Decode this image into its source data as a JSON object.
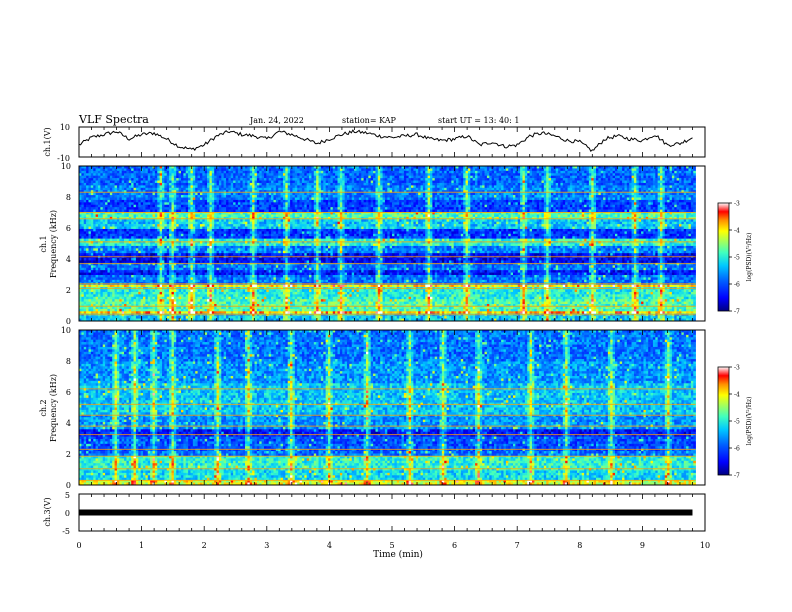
{
  "header": {
    "title": "VLF Spectra",
    "date": "Jan. 24, 2022",
    "station": "station= KAP",
    "start": "start  UT =   13: 40: 1"
  },
  "colors": {
    "frame": "#000000",
    "background": "#ffffff",
    "colormap": [
      "#00007f",
      "#0000ff",
      "#0060ff",
      "#00c8ff",
      "#40ffbf",
      "#a0ff60",
      "#ffff00",
      "#ff9000",
      "#ff0000",
      "#ffffff"
    ]
  },
  "chart_data": [
    {
      "type": "line",
      "panel": "ch1-waveform",
      "ylabel": "ch.1(V)",
      "ylim": [
        -10,
        10
      ],
      "yticks": [
        "10",
        "-10"
      ],
      "xlim": [
        0,
        10
      ],
      "series": [
        {
          "x": [
            0,
            0.2,
            0.4,
            0.6,
            0.8,
            1.0,
            1.2,
            1.4,
            1.6,
            1.8,
            2.0,
            2.2,
            2.4,
            2.6,
            2.8,
            3.0,
            3.2,
            3.4,
            3.6,
            3.8,
            4.0,
            4.2,
            4.4,
            4.6,
            4.8,
            5.0,
            5.2,
            5.4,
            5.6,
            5.8,
            6.0,
            6.2,
            6.4,
            6.6,
            6.8,
            7.0,
            7.2,
            7.4,
            7.6,
            7.8,
            8.0,
            8.2,
            8.4,
            8.6,
            8.8,
            9.0,
            9.2,
            9.4,
            9.6,
            9.8
          ],
          "y": [
            -2,
            3,
            5,
            7,
            2,
            5,
            6,
            2,
            -3,
            -5,
            -2,
            4,
            7,
            5,
            4,
            2,
            7,
            5,
            2,
            -1,
            2,
            5,
            7,
            6,
            4,
            3,
            4,
            5,
            2,
            1,
            2,
            4,
            -2,
            0,
            -3,
            -2,
            4,
            6,
            4,
            1,
            0,
            -6,
            2,
            4,
            2,
            1,
            5,
            -2,
            -1,
            3
          ]
        }
      ]
    },
    {
      "type": "heatmap",
      "panel": "ch1-spectrogram",
      "ylabel": "ch.1\nFrequency (kHz)",
      "ylim": [
        0,
        10
      ],
      "yticks": [
        "0",
        "2",
        "4",
        "6",
        "8",
        "10"
      ],
      "xlim": [
        0,
        10
      ],
      "colorbar": {
        "label": "log(PSD)(V²/Hz)",
        "range": [
          -7,
          -3
        ],
        "ticks": [
          "-3",
          "-4",
          "-5",
          "-6",
          "-7"
        ]
      },
      "bands": [
        {
          "low": 0,
          "high": 0.4,
          "level": 0.42
        },
        {
          "low": 0.4,
          "high": 0.7,
          "level": 0.8
        },
        {
          "low": 0.7,
          "high": 1.4,
          "level": 0.55
        },
        {
          "low": 1.4,
          "high": 2.2,
          "level": 0.5
        },
        {
          "low": 2.2,
          "high": 2.4,
          "level": 0.75
        },
        {
          "low": 2.4,
          "high": 3.0,
          "level": 0.3
        },
        {
          "low": 3.0,
          "high": 3.3,
          "level": 0.15
        },
        {
          "low": 3.3,
          "high": 3.7,
          "level": 0.3
        },
        {
          "low": 3.7,
          "high": 4.3,
          "level": 0.12
        },
        {
          "low": 4.3,
          "high": 4.8,
          "level": 0.32
        },
        {
          "low": 4.8,
          "high": 5.3,
          "level": 0.5
        },
        {
          "low": 5.3,
          "high": 6.0,
          "level": 0.2
        },
        {
          "low": 6.0,
          "high": 6.6,
          "level": 0.42
        },
        {
          "low": 6.6,
          "high": 7.0,
          "level": 0.55
        },
        {
          "low": 7.0,
          "high": 7.8,
          "level": 0.22
        },
        {
          "low": 7.8,
          "high": 8.8,
          "level": 0.32
        },
        {
          "low": 8.8,
          "high": 10.0,
          "level": 0.28
        }
      ],
      "lines": [
        0.4,
        0.95,
        2.1,
        2.4,
        3.7,
        4.15,
        5.1,
        6.6,
        7.0,
        8.3
      ],
      "bursts": [
        1.3,
        1.5,
        1.8,
        2.1,
        2.8,
        3.3,
        3.8,
        4.2,
        4.8,
        5.6,
        6.2,
        7.1,
        7.5,
        8.2,
        8.9,
        9.3
      ]
    },
    {
      "type": "heatmap",
      "panel": "ch2-spectrogram",
      "ylabel": "ch.2\nFrequency (kHz)",
      "ylim": [
        0,
        10
      ],
      "yticks": [
        "0",
        "2",
        "4",
        "6",
        "8",
        "10"
      ],
      "xlim": [
        0,
        10
      ],
      "colorbar": {
        "label": "log(PSD)(V²/Hz)",
        "range": [
          -7,
          -3
        ],
        "ticks": [
          "-3",
          "-4",
          "-5",
          "-6",
          "-7"
        ]
      },
      "bands": [
        {
          "low": 0,
          "high": 0.3,
          "level": 0.7
        },
        {
          "low": 0.3,
          "high": 1.0,
          "level": 0.45
        },
        {
          "low": 1.0,
          "high": 1.8,
          "level": 0.5
        },
        {
          "low": 1.8,
          "high": 2.2,
          "level": 0.3
        },
        {
          "low": 2.2,
          "high": 3.2,
          "level": 0.25
        },
        {
          "low": 3.2,
          "high": 3.6,
          "level": 0.15
        },
        {
          "low": 3.6,
          "high": 4.5,
          "level": 0.35
        },
        {
          "low": 4.5,
          "high": 6.5,
          "level": 0.42
        },
        {
          "low": 6.5,
          "high": 8.0,
          "level": 0.35
        },
        {
          "low": 8.0,
          "high": 10.0,
          "level": 0.3
        }
      ],
      "lines": [
        0.3,
        1.05,
        1.85,
        2.3,
        3.25,
        3.8,
        4.5,
        5.2,
        6.2
      ],
      "bursts": [
        0.6,
        0.9,
        1.2,
        1.5,
        2.2,
        2.7,
        3.4,
        4.0,
        4.6,
        5.3,
        5.8,
        6.4,
        7.2,
        7.8,
        8.5,
        9.4
      ]
    },
    {
      "type": "line",
      "panel": "ch3-waveform",
      "ylabel": "ch.3(V)",
      "ylim": [
        -5,
        5
      ],
      "yticks": [
        "5",
        "0",
        "-5"
      ],
      "xlabel": "Time  (min)",
      "xlim": [
        0,
        10
      ],
      "xticks": [
        "0",
        "1",
        "2",
        "3",
        "4",
        "5",
        "6",
        "7",
        "8",
        "9",
        "10"
      ],
      "series": [
        {
          "x": [
            0,
            9.8
          ],
          "y": [
            0,
            0
          ]
        }
      ]
    }
  ]
}
